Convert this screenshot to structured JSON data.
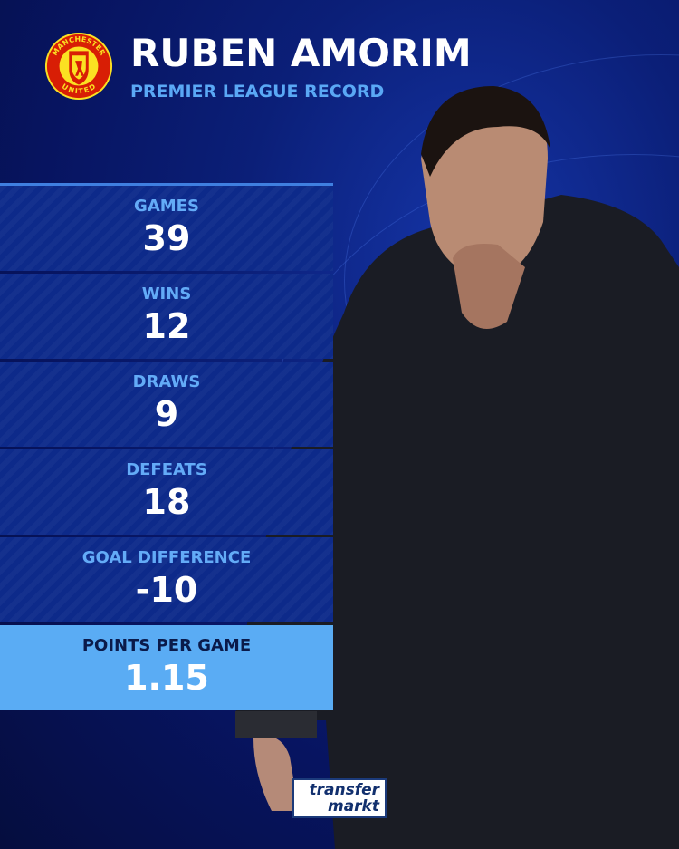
{
  "header": {
    "title": "RUBEN AMORIM",
    "subtitle": "PREMIER LEAGUE RECORD",
    "crest": "Manchester United crest",
    "crest_text": [
      "MANCHESTER",
      "UNITED"
    ]
  },
  "stats": [
    {
      "label": "GAMES",
      "value": "39"
    },
    {
      "label": "WINS",
      "value": "12"
    },
    {
      "label": "DRAWS",
      "value": "9"
    },
    {
      "label": "DEFEATS",
      "value": "18"
    },
    {
      "label": "GOAL DIFFERENCE",
      "value": "-10"
    },
    {
      "label": "POINTS PER GAME",
      "value": "1.15",
      "highlight": true
    }
  ],
  "branding": {
    "line1": "transfer",
    "line2": "markt"
  },
  "colors": {
    "background": "#0b1f78",
    "panel": "#0d2a8a",
    "label": "#63abf7",
    "highlight": "#5aacf4",
    "crest_red": "#d81e05",
    "crest_yellow": "#fbe122"
  }
}
